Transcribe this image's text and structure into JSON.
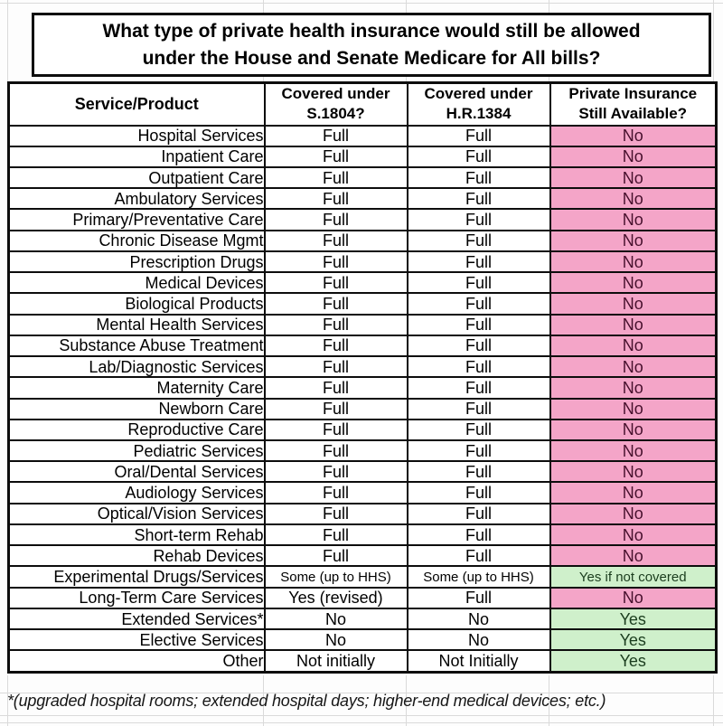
{
  "page": {
    "title_line1": "What type of private health insurance would still be allowed",
    "title_line2": "under the House and Senate Medicare for All bills?",
    "footnote": "*(upgraded hospital rooms; extended hospital days; higher-end medical devices; etc.)"
  },
  "table": {
    "headers": [
      {
        "line1": "Service/Product",
        "line2": ""
      },
      {
        "line1": "Covered under",
        "line2": "S.1804?"
      },
      {
        "line1": "Covered under",
        "line2": "H.R.1384"
      },
      {
        "line1": "Private Insurance",
        "line2": "Still Available?"
      }
    ],
    "rows": [
      {
        "service": "Hospital Services",
        "s1804": "Full",
        "hr1384": "Full",
        "available": "No",
        "available_color": "pink",
        "small": false
      },
      {
        "service": "Inpatient Care",
        "s1804": "Full",
        "hr1384": "Full",
        "available": "No",
        "available_color": "pink",
        "small": false
      },
      {
        "service": "Outpatient Care",
        "s1804": "Full",
        "hr1384": "Full",
        "available": "No",
        "available_color": "pink",
        "small": false
      },
      {
        "service": "Ambulatory Services",
        "s1804": "Full",
        "hr1384": "Full",
        "available": "No",
        "available_color": "pink",
        "small": false
      },
      {
        "service": "Primary/Preventative Care",
        "s1804": "Full",
        "hr1384": "Full",
        "available": "No",
        "available_color": "pink",
        "small": false
      },
      {
        "service": "Chronic Disease Mgmt",
        "s1804": "Full",
        "hr1384": "Full",
        "available": "No",
        "available_color": "pink",
        "small": false
      },
      {
        "service": "Prescription Drugs",
        "s1804": "Full",
        "hr1384": "Full",
        "available": "No",
        "available_color": "pink",
        "small": false
      },
      {
        "service": "Medical Devices",
        "s1804": "Full",
        "hr1384": "Full",
        "available": "No",
        "available_color": "pink",
        "small": false
      },
      {
        "service": "Biological Products",
        "s1804": "Full",
        "hr1384": "Full",
        "available": "No",
        "available_color": "pink",
        "small": false
      },
      {
        "service": "Mental Health Services",
        "s1804": "Full",
        "hr1384": "Full",
        "available": "No",
        "available_color": "pink",
        "small": false
      },
      {
        "service": "Substance Abuse Treatment",
        "s1804": "Full",
        "hr1384": "Full",
        "available": "No",
        "available_color": "pink",
        "small": false
      },
      {
        "service": "Lab/Diagnostic Services",
        "s1804": "Full",
        "hr1384": "Full",
        "available": "No",
        "available_color": "pink",
        "small": false
      },
      {
        "service": "Maternity Care",
        "s1804": "Full",
        "hr1384": "Full",
        "available": "No",
        "available_color": "pink",
        "small": false
      },
      {
        "service": "Newborn Care",
        "s1804": "Full",
        "hr1384": "Full",
        "available": "No",
        "available_color": "pink",
        "small": false
      },
      {
        "service": "Reproductive Care",
        "s1804": "Full",
        "hr1384": "Full",
        "available": "No",
        "available_color": "pink",
        "small": false
      },
      {
        "service": "Pediatric Services",
        "s1804": "Full",
        "hr1384": "Full",
        "available": "No",
        "available_color": "pink",
        "small": false
      },
      {
        "service": "Oral/Dental Services",
        "s1804": "Full",
        "hr1384": "Full",
        "available": "No",
        "available_color": "pink",
        "small": false
      },
      {
        "service": "Audiology Services",
        "s1804": "Full",
        "hr1384": "Full",
        "available": "No",
        "available_color": "pink",
        "small": false
      },
      {
        "service": "Optical/Vision Services",
        "s1804": "Full",
        "hr1384": "Full",
        "available": "No",
        "available_color": "pink",
        "small": false
      },
      {
        "service": "Short-term Rehab",
        "s1804": "Full",
        "hr1384": "Full",
        "available": "No",
        "available_color": "pink",
        "small": false
      },
      {
        "service": "Rehab Devices",
        "s1804": "Full",
        "hr1384": "Full",
        "available": "No",
        "available_color": "pink",
        "small": false
      },
      {
        "service": "Experimental Drugs/Services",
        "s1804": "Some (up to HHS)",
        "hr1384": "Some (up to HHS)",
        "available": "Yes if not covered",
        "available_color": "green",
        "small": true
      },
      {
        "service": "Long-Term Care Services",
        "s1804": "Yes (revised)",
        "hr1384": "Full",
        "available": "No",
        "available_color": "pink",
        "small": false
      },
      {
        "service": "Extended Services*",
        "s1804": "No",
        "hr1384": "No",
        "available": "Yes",
        "available_color": "green",
        "small": false
      },
      {
        "service": "Elective Services",
        "s1804": "No",
        "hr1384": "No",
        "available": "Yes",
        "available_color": "green",
        "small": false
      },
      {
        "service": "Other",
        "s1804": "Not initially",
        "hr1384": "Not Initially",
        "available": "Yes",
        "available_color": "green",
        "small": false
      }
    ]
  },
  "colors": {
    "no_cell_bg": "#F4A5C8",
    "no_cell_text": "#47102D",
    "yes_cell_bg": "#CFF0CB",
    "yes_cell_text": "#1B3D1E",
    "border": "#0D0D0D",
    "gridline": "#DADADA"
  }
}
